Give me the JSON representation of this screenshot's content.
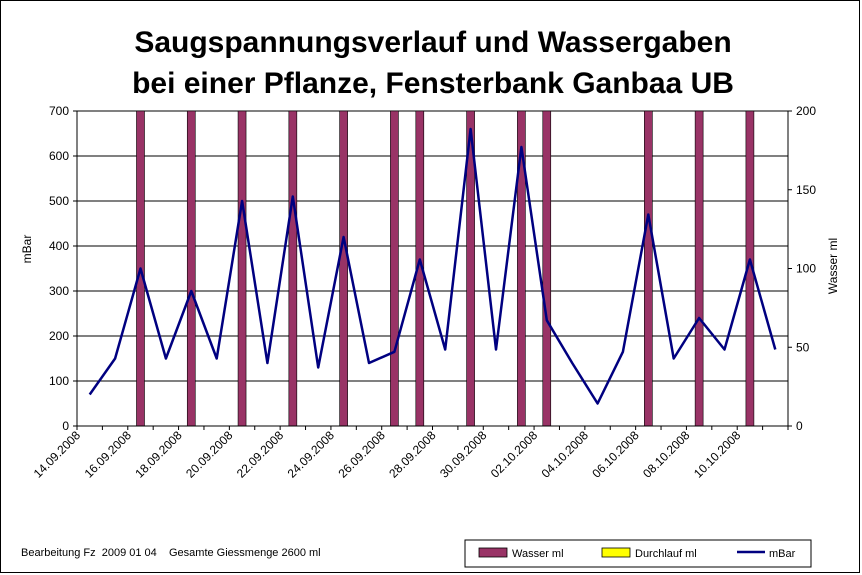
{
  "footer": {
    "note": "Bearbeitung Fz  2009 01 04    Gesamte Giessmenge 2600 ml"
  },
  "colors": {
    "water": "#993366",
    "durchlauf": "#ffff00",
    "mbar": "#000080",
    "grid": "#000000",
    "background": "#ffffff"
  },
  "chart_data": {
    "type": "bar+line",
    "title": [
      "Saugspannungsverlauf und Wassergaben",
      "bei einer Pflanze, Fensterbank Ganbaa UB"
    ],
    "ylabel": "mBar",
    "y2label": "Wasser ml",
    "ylim": [
      0,
      700
    ],
    "y2lim": [
      0,
      200
    ],
    "yticks": [
      "0",
      "100",
      "200",
      "300",
      "400",
      "500",
      "600",
      "700"
    ],
    "y2ticks": [
      "0",
      "50",
      "100",
      "150",
      "200"
    ],
    "grid": true,
    "legend_placement": "bottom-right",
    "x_tick_labels": [
      "14.09.2008",
      "16.09.2008",
      "18.09.2008",
      "20.09.2008",
      "22.09.2008",
      "24.09.2008",
      "26.09.2008",
      "28.09.2008",
      "30.09.2008",
      "02.10.2008",
      "04.10.2008",
      "06.10.2008",
      "08.10.2008",
      "10.10.2008"
    ],
    "x_range": [
      "14.09.2008",
      "12.10.2008"
    ],
    "series": [
      {
        "name": "Wasser ml",
        "type": "bar",
        "axis": "right",
        "points": [
          {
            "x": "16.09.2008 12:00",
            "y": 200
          },
          {
            "x": "18.09.2008 12:00",
            "y": 200
          },
          {
            "x": "20.09.2008 12:00",
            "y": 200
          },
          {
            "x": "22.09.2008 12:00",
            "y": 200
          },
          {
            "x": "24.09.2008 12:00",
            "y": 200
          },
          {
            "x": "26.09.2008 12:00",
            "y": 200
          },
          {
            "x": "27.09.2008 12:00",
            "y": 200
          },
          {
            "x": "29.09.2008 12:00",
            "y": 200
          },
          {
            "x": "01.10.2008 12:00",
            "y": 200
          },
          {
            "x": "02.10.2008 12:00",
            "y": 200
          },
          {
            "x": "06.10.2008 12:00",
            "y": 200
          },
          {
            "x": "08.10.2008 12:00",
            "y": 200
          },
          {
            "x": "10.10.2008 12:00",
            "y": 200
          }
        ]
      },
      {
        "name": "Durchlauf ml",
        "type": "bar",
        "axis": "right",
        "points": []
      },
      {
        "name": "mBar",
        "type": "line",
        "axis": "left",
        "points": [
          {
            "x": "14.09.2008 12:00",
            "y": 70
          },
          {
            "x": "15.09.2008 12:00",
            "y": 150
          },
          {
            "x": "16.09.2008 12:00",
            "y": 350
          },
          {
            "x": "17.09.2008 12:00",
            "y": 150
          },
          {
            "x": "18.09.2008 12:00",
            "y": 300
          },
          {
            "x": "19.09.2008 12:00",
            "y": 150
          },
          {
            "x": "20.09.2008 12:00",
            "y": 500
          },
          {
            "x": "21.09.2008 12:00",
            "y": 140
          },
          {
            "x": "22.09.2008 12:00",
            "y": 510
          },
          {
            "x": "23.09.2008 12:00",
            "y": 130
          },
          {
            "x": "24.09.2008 12:00",
            "y": 420
          },
          {
            "x": "25.09.2008 12:00",
            "y": 140
          },
          {
            "x": "26.09.2008 12:00",
            "y": 165
          },
          {
            "x": "27.09.2008 12:00",
            "y": 370
          },
          {
            "x": "28.09.2008 12:00",
            "y": 170
          },
          {
            "x": "29.09.2008 12:00",
            "y": 660
          },
          {
            "x": "30.09.2008 12:00",
            "y": 170
          },
          {
            "x": "01.10.2008 12:00",
            "y": 620
          },
          {
            "x": "02.10.2008 12:00",
            "y": 235
          },
          {
            "x": "03.10.2008 12:00",
            "y": 140
          },
          {
            "x": "04.10.2008 12:00",
            "y": 50
          },
          {
            "x": "05.10.2008 12:00",
            "y": 165
          },
          {
            "x": "06.10.2008 12:00",
            "y": 470
          },
          {
            "x": "07.10.2008 12:00",
            "y": 150
          },
          {
            "x": "08.10.2008 12:00",
            "y": 240
          },
          {
            "x": "09.10.2008 12:00",
            "y": 170
          },
          {
            "x": "10.10.2008 12:00",
            "y": 370
          },
          {
            "x": "11.10.2008 12:00",
            "y": 170
          }
        ]
      }
    ]
  }
}
